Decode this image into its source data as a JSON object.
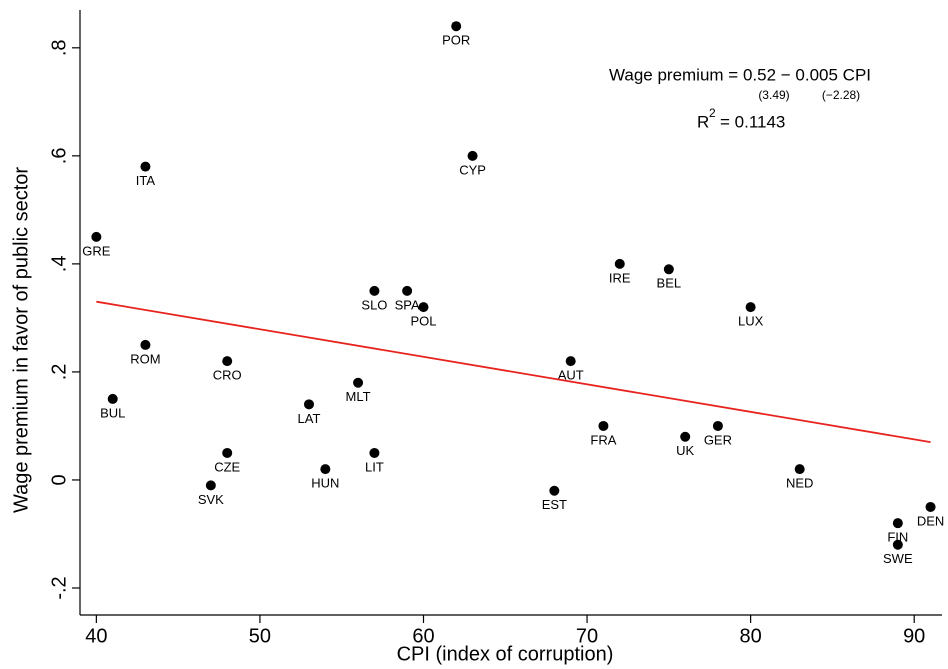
{
  "chart_data": {
    "type": "scatter",
    "x_label": "CPI (index of corruption)",
    "y_label": "Wage premium in favor of public sector",
    "labels": [
      "POR",
      "ITA",
      "CYP",
      "GRE",
      "IRE",
      "BEL",
      "SLO",
      "SPA",
      "POL",
      "LUX",
      "ROM",
      "CRO",
      "AUT",
      "MLT",
      "BUL",
      "LAT",
      "FRA",
      "GER",
      "UK",
      "CZE",
      "LIT",
      "HUN",
      "NED",
      "SVK",
      "EST",
      "DEN",
      "FIN",
      "SWE"
    ],
    "x": [
      62,
      43,
      63,
      40,
      72,
      75,
      57,
      59,
      60,
      80,
      43,
      48,
      69,
      56,
      41,
      53,
      71,
      78,
      76,
      48,
      57,
      54,
      83,
      47,
      68,
      91,
      89,
      89
    ],
    "values": [
      0.84,
      0.58,
      0.6,
      0.45,
      0.4,
      0.39,
      0.35,
      0.35,
      0.32,
      0.32,
      0.25,
      0.22,
      0.22,
      0.18,
      0.15,
      0.14,
      0.1,
      0.1,
      0.08,
      0.05,
      0.05,
      0.02,
      0.02,
      -0.01,
      -0.02,
      -0.05,
      -0.08,
      -0.12
    ],
    "color": "#000000",
    "fit": {
      "x": [
        40,
        91
      ],
      "values": [
        0.33,
        0.07
      ],
      "color": "#e8231e"
    },
    "annotations": {
      "equation": "Wage premium = 0.52 − 0.005 CPI",
      "se_intercept": "(3.49)",
      "se_slope": "(−2.28)",
      "r2_symbol": "R",
      "r2_sup": "2",
      "r2_value": "= 0.1143"
    },
    "xlim": [
      39,
      91.7
    ],
    "ylim": [
      -0.25,
      0.87
    ],
    "xticks": [
      40,
      50,
      60,
      70,
      80,
      90
    ],
    "yticks": [
      {
        "value": -0.2,
        "label": "-.2"
      },
      0,
      {
        "value": 0.2,
        "label": ".2"
      },
      {
        "value": 0.4,
        "label": ".4"
      },
      {
        "value": 0.6,
        "label": ".6"
      },
      {
        "value": 0.8,
        "label": ".8"
      }
    ]
  }
}
